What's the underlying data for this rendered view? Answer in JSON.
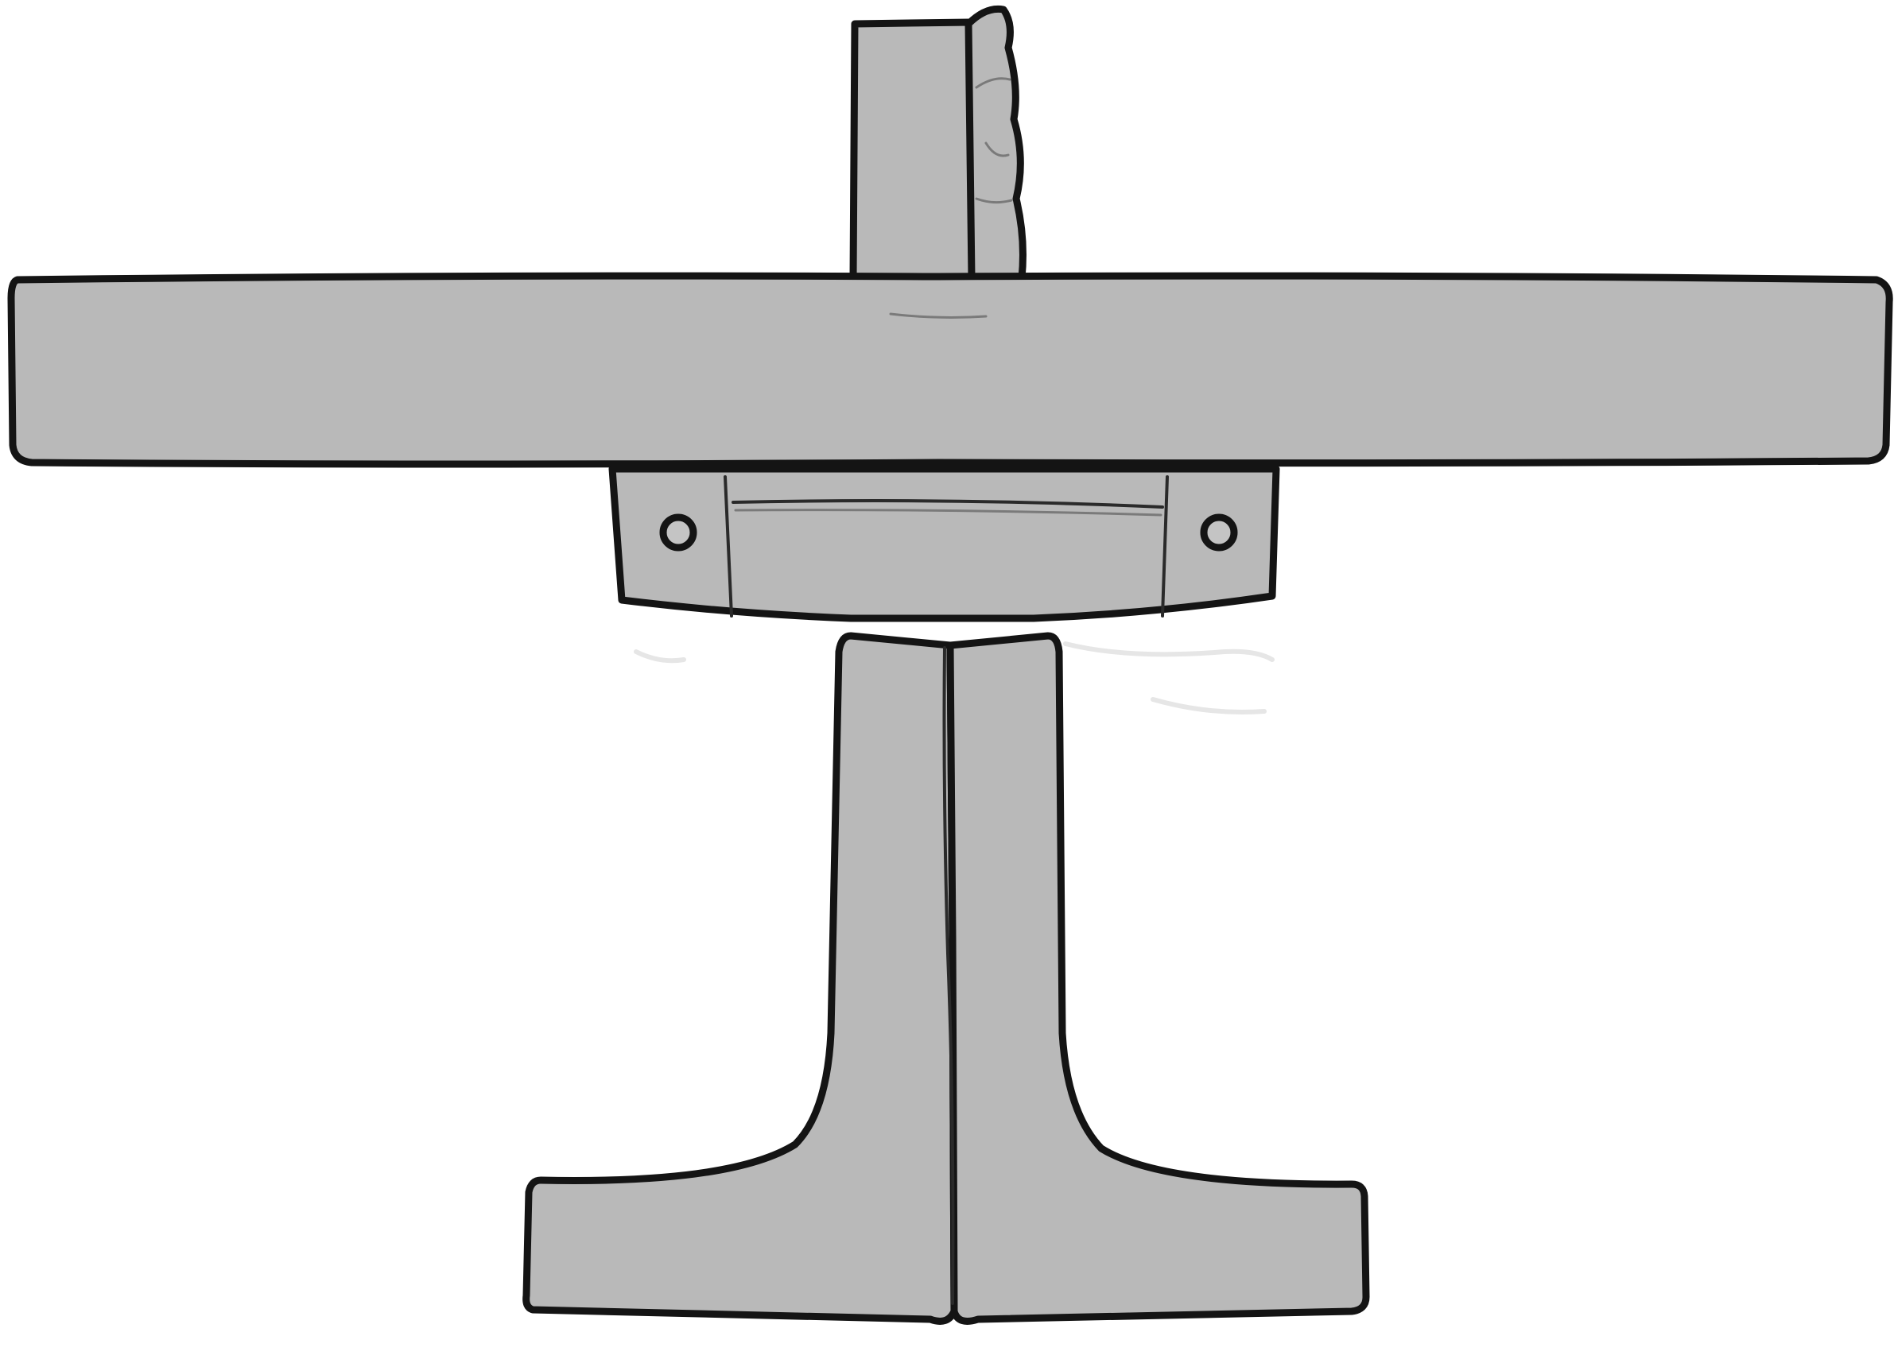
{
  "illustration": {
    "style": "hand-drawn sketch",
    "palette": {
      "background": "#ffffff",
      "fill": "#b9b9b9",
      "outline": "#141414"
    },
    "parts": [
      "top-post",
      "crossbar",
      "bracket-block",
      "left-bolt",
      "right-bolt",
      "pedestal-stem",
      "left-foot",
      "right-foot"
    ]
  }
}
